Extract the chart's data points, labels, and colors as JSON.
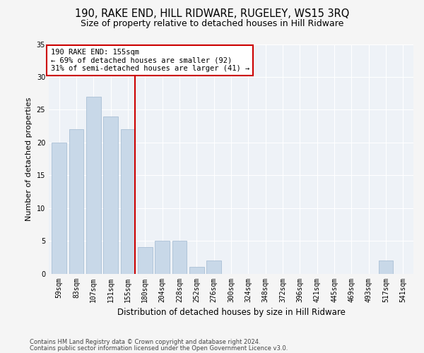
{
  "title": "190, RAKE END, HILL RIDWARE, RUGELEY, WS15 3RQ",
  "subtitle": "Size of property relative to detached houses in Hill Ridware",
  "xlabel": "Distribution of detached houses by size in Hill Ridware",
  "ylabel": "Number of detached properties",
  "categories": [
    "59sqm",
    "83sqm",
    "107sqm",
    "131sqm",
    "155sqm",
    "180sqm",
    "204sqm",
    "228sqm",
    "252sqm",
    "276sqm",
    "300sqm",
    "324sqm",
    "348sqm",
    "372sqm",
    "396sqm",
    "421sqm",
    "445sqm",
    "469sqm",
    "493sqm",
    "517sqm",
    "541sqm"
  ],
  "values": [
    20,
    22,
    27,
    24,
    22,
    4,
    5,
    5,
    1,
    2,
    0,
    0,
    0,
    0,
    0,
    0,
    0,
    0,
    0,
    2,
    0
  ],
  "bar_color": "#c8d8e8",
  "bar_edge_color": "#a0b8d0",
  "red_line_index": 4,
  "annotation_line1": "190 RAKE END: 155sqm",
  "annotation_line2": "← 69% of detached houses are smaller (92)",
  "annotation_line3": "31% of semi-detached houses are larger (41) →",
  "annotation_box_color": "#ffffff",
  "annotation_box_edge": "#cc0000",
  "ylim": [
    0,
    35
  ],
  "yticks": [
    0,
    5,
    10,
    15,
    20,
    25,
    30,
    35
  ],
  "footer1": "Contains HM Land Registry data © Crown copyright and database right 2024.",
  "footer2": "Contains public sector information licensed under the Open Government Licence v3.0.",
  "background_color": "#eef2f7",
  "grid_color": "#ffffff",
  "title_fontsize": 10.5,
  "subtitle_fontsize": 9,
  "axis_label_fontsize": 8,
  "tick_fontsize": 7,
  "annotation_fontsize": 7.5,
  "footer_fontsize": 6.0
}
